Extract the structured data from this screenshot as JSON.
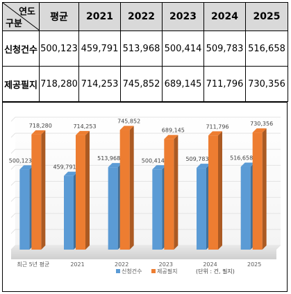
{
  "table": {
    "corner_top": "연도",
    "corner_bottom": "구분",
    "headers": [
      "평균",
      "2021",
      "2022",
      "2023",
      "2024",
      "2025"
    ],
    "rows": [
      {
        "label": "신청건수",
        "values": [
          "500,123",
          "459,791",
          "513,968",
          "500,414",
          "509,783",
          "516,658"
        ]
      },
      {
        "label": "제공필지",
        "values": [
          "718,280",
          "714,253",
          "745,852",
          "689,145",
          "711,796",
          "730,356"
        ]
      }
    ]
  },
  "chart_data": {
    "type": "bar",
    "categories": [
      "최근 5년 평균",
      "2021",
      "2022",
      "2023",
      "2024",
      "2025"
    ],
    "series": [
      {
        "name": "신청건수",
        "values": [
          500123,
          459791,
          513968,
          500414,
          509783,
          516658
        ],
        "labels": [
          "500,123",
          "459,791",
          "513,968",
          "500,414",
          "509,783",
          "516,658"
        ],
        "color": "#5b9bd5"
      },
      {
        "name": "제공필지",
        "values": [
          718280,
          714253,
          745852,
          689145,
          711796,
          730356
        ],
        "labels": [
          "718,280",
          "714,253",
          "745,852",
          "689,145",
          "711,796",
          "730,356"
        ],
        "color": "#ed7d31"
      }
    ],
    "ylim": [
      0,
      800000
    ],
    "grid": true,
    "legend_position": "bottom",
    "unit_note": "(단위 : 건, 필지)"
  }
}
